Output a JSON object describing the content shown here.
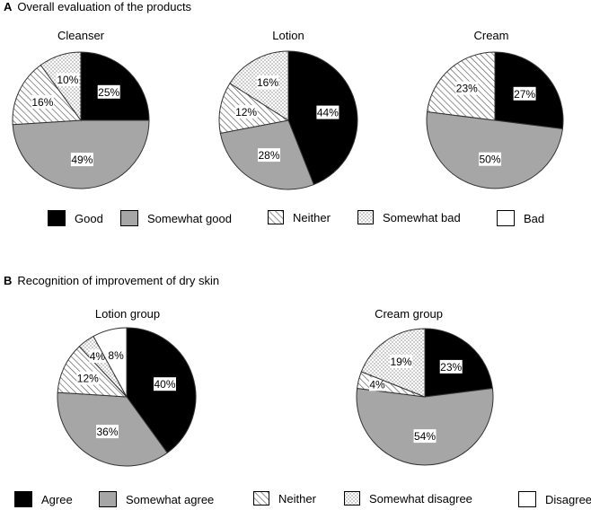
{
  "panel_a": {
    "letter": "A",
    "title": "Overall evaluation of the products",
    "legend": [
      {
        "key": "good",
        "label": "Good"
      },
      {
        "key": "somewhat_good",
        "label": "Somewhat good"
      },
      {
        "key": "neither",
        "label": "Neither"
      },
      {
        "key": "somewhat_bad",
        "label": "Somewhat bad"
      },
      {
        "key": "bad",
        "label": "Bad"
      }
    ]
  },
  "panel_b": {
    "letter": "B",
    "title": "Recognition of improvement of dry skin",
    "legend": [
      {
        "key": "agree",
        "label": "Agree"
      },
      {
        "key": "somewhat_agree",
        "label": "Somewhat agree"
      },
      {
        "key": "neither",
        "label": "Neither"
      },
      {
        "key": "somewhat_disagree",
        "label": "Somewhat disagree"
      },
      {
        "key": "disagree",
        "label": "Disagree"
      }
    ]
  },
  "colors": {
    "black": "#000000",
    "gray": "#a6a6a6",
    "white": "#ffffff",
    "stroke": "#333333"
  },
  "chart_data": [
    {
      "type": "pie",
      "panel": "A",
      "title": "Cleanser",
      "slices": [
        {
          "label": "Good",
          "value": 25,
          "text": "25%"
        },
        {
          "label": "Somewhat good",
          "value": 49,
          "text": "49%"
        },
        {
          "label": "Neither",
          "value": 16,
          "text": "16%"
        },
        {
          "label": "Somewhat bad",
          "value": 10,
          "text": "10%"
        },
        {
          "label": "Bad",
          "value": 0,
          "text": ""
        }
      ]
    },
    {
      "type": "pie",
      "panel": "A",
      "title": "Lotion",
      "slices": [
        {
          "label": "Good",
          "value": 44,
          "text": "44%"
        },
        {
          "label": "Somewhat good",
          "value": 28,
          "text": "28%"
        },
        {
          "label": "Neither",
          "value": 12,
          "text": "12%"
        },
        {
          "label": "Somewhat bad",
          "value": 16,
          "text": "16%"
        },
        {
          "label": "Bad",
          "value": 0,
          "text": ""
        }
      ]
    },
    {
      "type": "pie",
      "panel": "A",
      "title": "Cream",
      "slices": [
        {
          "label": "Good",
          "value": 27,
          "text": "27%"
        },
        {
          "label": "Somewhat good",
          "value": 50,
          "text": "50%"
        },
        {
          "label": "Neither",
          "value": 23,
          "text": "23%"
        },
        {
          "label": "Somewhat bad",
          "value": 0,
          "text": ""
        },
        {
          "label": "Bad",
          "value": 0,
          "text": ""
        }
      ]
    },
    {
      "type": "pie",
      "panel": "B",
      "title": "Lotion group",
      "slices": [
        {
          "label": "Agree",
          "value": 40,
          "text": "40%"
        },
        {
          "label": "Somewhat agree",
          "value": 36,
          "text": "36%"
        },
        {
          "label": "Neither",
          "value": 12,
          "text": "12%"
        },
        {
          "label": "Somewhat disagree",
          "value": 4,
          "text": "4%"
        },
        {
          "label": "Disagree",
          "value": 8,
          "text": "8%"
        }
      ]
    },
    {
      "type": "pie",
      "panel": "B",
      "title": "Cream group",
      "slices": [
        {
          "label": "Agree",
          "value": 23,
          "text": "23%"
        },
        {
          "label": "Somewhat agree",
          "value": 54,
          "text": "54%"
        },
        {
          "label": "Neither",
          "value": 4,
          "text": "4%"
        },
        {
          "label": "Somewhat disagree",
          "value": 19,
          "text": "19%"
        },
        {
          "label": "Disagree",
          "value": 0,
          "text": ""
        }
      ]
    }
  ]
}
